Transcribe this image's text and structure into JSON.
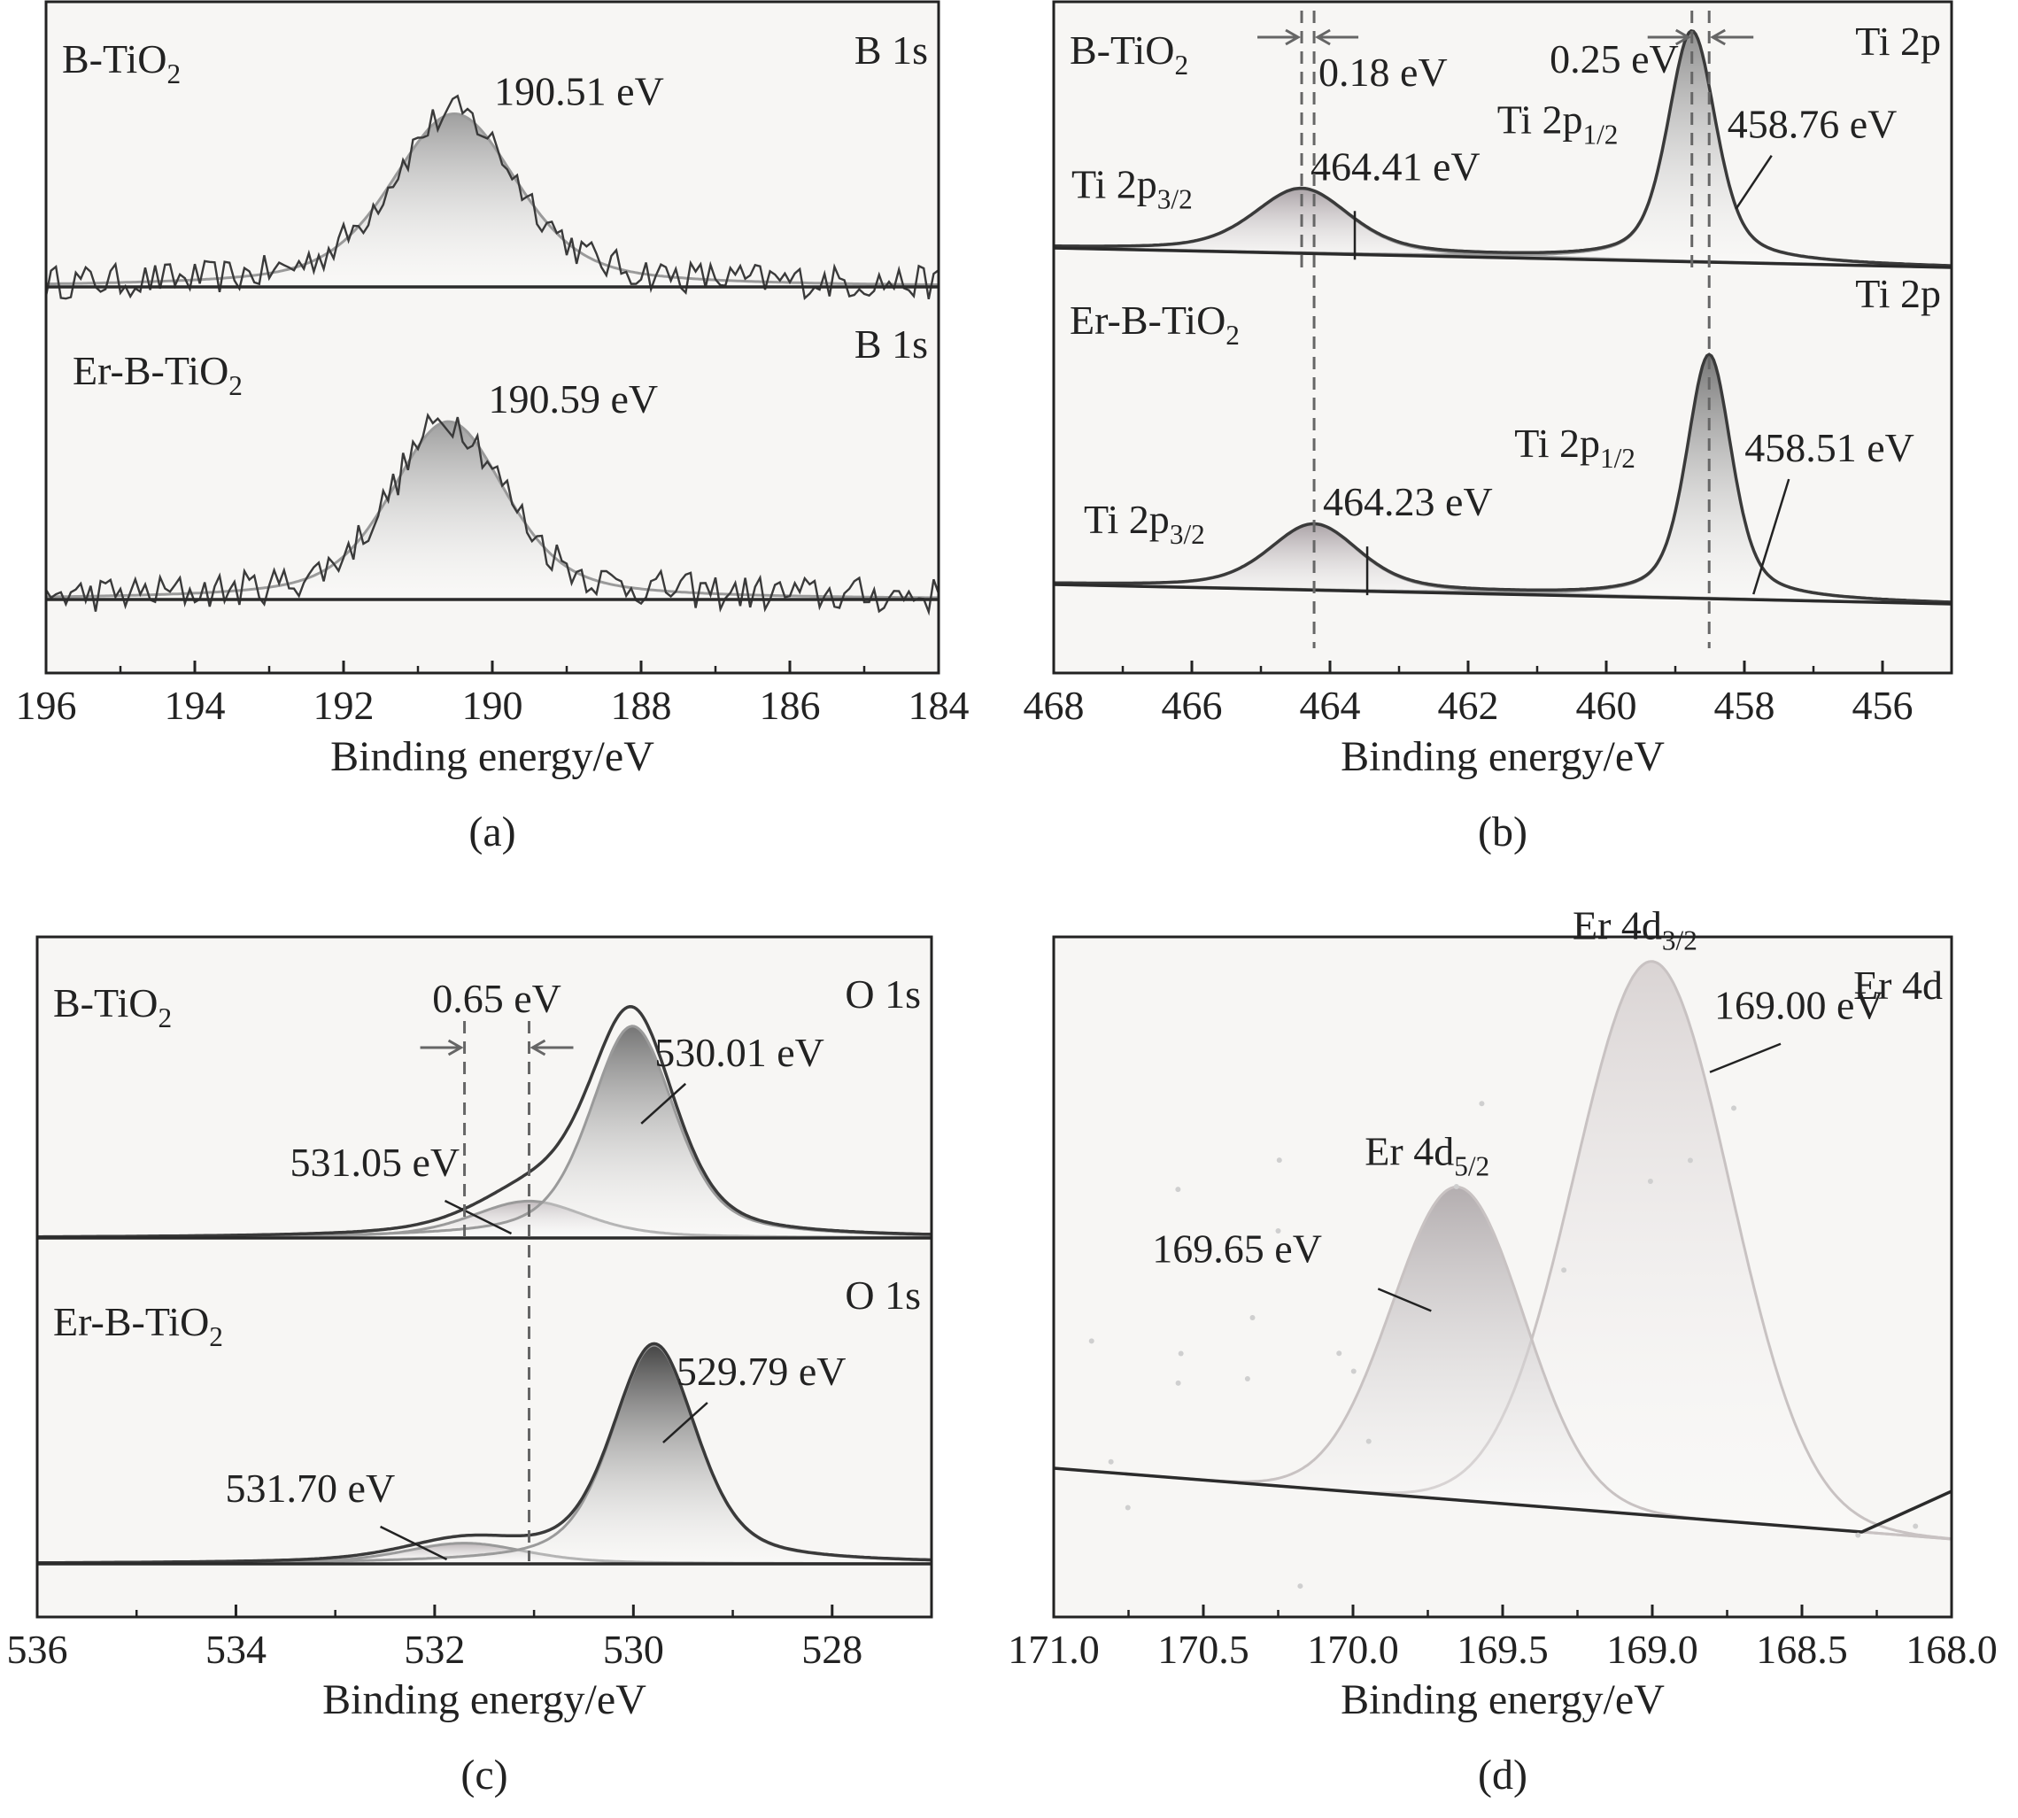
{
  "figure": {
    "colors": {
      "frame": "#222222",
      "spectrum": "#3a3a3a",
      "fitLine": "#9a9a9a",
      "baseline": "#2b2b2b",
      "dashed": "#666666",
      "plotBg": "#f7f6f4"
    }
  },
  "chart_data": [
    {
      "id": "a",
      "type": "line",
      "panel_label": "(a)",
      "xlabel": "Binding energy/eV",
      "xlim": [
        196,
        184
      ],
      "xticks": [
        196,
        194,
        192,
        190,
        188,
        186,
        184
      ],
      "core_level": "B 1s",
      "series": [
        {
          "sample": "B-TiO2",
          "sample_base": "B-TiO",
          "sample_sub": "2",
          "core_label": "B 1s",
          "peaks": [
            {
              "center": 190.51,
              "label": "190.51 eV",
              "height": 0.85,
              "width": 1.1,
              "shade": "#9a9a9a"
            }
          ],
          "noise": 0.12
        },
        {
          "sample": "Er-B-TiO2",
          "sample_base": "Er-B-TiO",
          "sample_sub": "2",
          "core_label": "B 1s",
          "peaks": [
            {
              "center": 190.59,
              "label": "190.59 eV",
              "height": 0.82,
              "width": 1.0,
              "shade": "#9a9a9a"
            }
          ],
          "noise": 0.12
        }
      ]
    },
    {
      "id": "b",
      "type": "line",
      "panel_label": "(b)",
      "xlabel": "Binding energy/eV",
      "xlim": [
        468,
        455
      ],
      "xticks": [
        468,
        466,
        464,
        462,
        460,
        458,
        456
      ],
      "core_level": "Ti 2p",
      "shifts": [
        {
          "label": "0.18 eV",
          "from": 464.41,
          "to": 464.23
        },
        {
          "label": "0.25 eV",
          "from": 458.76,
          "to": 458.51
        }
      ],
      "series": [
        {
          "sample": "B-TiO2",
          "sample_base": "B-TiO",
          "sample_sub": "2",
          "core_label": "Ti 2p",
          "peaks": [
            {
              "name": "Ti 2p3/2",
              "name_base": "Ti 2p",
              "name_sub": "3/2",
              "center": 464.41,
              "label": "464.41 eV",
              "height": 0.28,
              "width": 0.9,
              "shade": "#a8a0a4"
            },
            {
              "name": "Ti 2p1/2",
              "name_base": "Ti 2p",
              "name_sub": "1/2",
              "center": 458.76,
              "label": "458.76 eV",
              "height": 1.0,
              "width": 0.45,
              "shade": "#8a8a8a"
            }
          ]
        },
        {
          "sample": "Er-B-TiO2",
          "sample_base": "Er-B-TiO",
          "sample_sub": "2",
          "core_label": "Ti 2p",
          "peaks": [
            {
              "name": "Ti 2p3/2",
              "name_base": "Ti 2p",
              "name_sub": "3/2",
              "center": 464.23,
              "label": "464.23 eV",
              "height": 0.27,
              "width": 0.85,
              "shade": "#a8a0a4"
            },
            {
              "name": "Ti 2p1/2",
              "name_base": "Ti 2p",
              "name_sub": "1/2",
              "center": 458.51,
              "label": "458.51 eV",
              "height": 1.0,
              "width": 0.42,
              "shade": "#707070"
            }
          ]
        }
      ]
    },
    {
      "id": "c",
      "type": "line",
      "panel_label": "(c)",
      "xlabel": "Binding energy/eV",
      "xlim": [
        536,
        527
      ],
      "xticks": [
        536,
        534,
        532,
        530,
        528
      ],
      "core_level": "O 1s",
      "shifts": [
        {
          "label": "0.65 eV",
          "from": 531.7,
          "to": 531.05
        }
      ],
      "series": [
        {
          "sample": "B-TiO2",
          "sample_base": "B-TiO",
          "sample_sub": "2",
          "core_label": "O 1s",
          "peaks": [
            {
              "center": 531.05,
              "label": "531.05 eV",
              "height": 0.16,
              "width": 0.75,
              "shade": "#bdb6b9"
            },
            {
              "center": 530.01,
              "label": "530.01 eV",
              "height": 0.92,
              "width": 0.55,
              "shade": "#6f6f6f"
            }
          ]
        },
        {
          "sample": "Er-B-TiO2",
          "sample_base": "Er-B-TiO",
          "sample_sub": "2",
          "core_label": "O 1s",
          "peaks": [
            {
              "center": 531.7,
              "label": "531.70 eV",
              "height": 0.09,
              "width": 0.8,
              "shade": "#b7b0b3"
            },
            {
              "center": 529.79,
              "label": "529.79 eV",
              "height": 0.95,
              "width": 0.55,
              "shade": "#3c3c3c"
            }
          ]
        }
      ]
    },
    {
      "id": "d",
      "type": "line",
      "panel_label": "(d)",
      "xlabel": "Binding energy/eV",
      "xlim": [
        171.0,
        168.0
      ],
      "xticks": [
        171.0,
        170.5,
        170.0,
        169.5,
        169.0,
        168.5,
        168.0
      ],
      "tick_format": "0.0",
      "core_level": "Er 4d",
      "series": [
        {
          "sample": "",
          "core_label": "Er 4d",
          "peaks": [
            {
              "name": "Er 4d5/2",
              "name_base": "Er 4d",
              "name_sub": "5/2",
              "center": 169.65,
              "label": "169.65 eV",
              "height": 0.52,
              "width": 0.22,
              "shade": "#b0aaac"
            },
            {
              "name": "Er 4d3/2",
              "name_base": "Er 4d",
              "name_sub": "3/2",
              "center": 169.0,
              "label": "169.00 eV",
              "height": 0.92,
              "width": 0.26,
              "shade": "#d8d2d2"
            }
          ]
        }
      ]
    }
  ]
}
